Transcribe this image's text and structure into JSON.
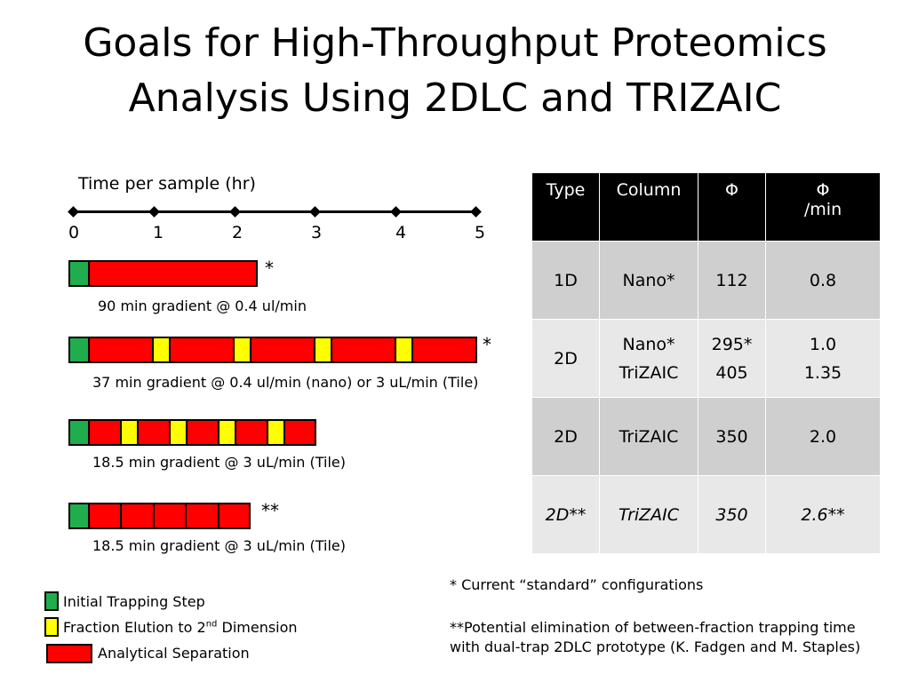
{
  "title": {
    "line1": "Goals for High-Throughput Proteomics",
    "line2": "Analysis Using 2DLC and TRIZAIC"
  },
  "axis": {
    "label": "Time per sample (hr)",
    "ticks": [
      "0",
      "1",
      "2",
      "3",
      "4",
      "5"
    ]
  },
  "bars": [
    {
      "caption": "90 min gradient @ 0.4 ul/min",
      "mark": "*",
      "segments": [
        "green",
        "red"
      ]
    },
    {
      "caption": "37 min gradient @ 0.4 ul/min (nano) or 3 uL/min (Tile)",
      "mark": "*",
      "segments": [
        "green",
        "red",
        "yellow",
        "red",
        "yellow",
        "red",
        "yellow",
        "red",
        "yellow",
        "red"
      ]
    },
    {
      "caption": "18.5 min gradient @ 3 uL/min (Tile)",
      "mark": "",
      "segments": [
        "green",
        "red",
        "yellow",
        "red",
        "yellow",
        "red",
        "yellow",
        "red",
        "yellow",
        "red"
      ]
    },
    {
      "caption": "18.5 min gradient @ 3 uL/min (Tile)",
      "mark": "**",
      "segments": [
        "green",
        "red",
        "red",
        "red",
        "red",
        "red"
      ]
    }
  ],
  "legend": {
    "green": "Initial Trapping Step",
    "yellow_prefix": "Fraction Elution to 2",
    "yellow_sup": "nd",
    "yellow_suffix": " Dimension",
    "red": "Analytical Separation"
  },
  "table": {
    "headers": [
      "Type",
      "Column",
      "Φ",
      "Φ",
      "/min"
    ],
    "rows": [
      {
        "type": "1D",
        "column1": "Nano*",
        "column2": "",
        "phi1": "112",
        "phi2": "",
        "rate1": "0.8",
        "rate2": ""
      },
      {
        "type": "2D",
        "column1": "Nano*",
        "column2": "TriZAIC",
        "phi1": "295*",
        "phi2": "405",
        "rate1": "1.0",
        "rate2": "1.35"
      },
      {
        "type": "2D",
        "column1": "TriZAIC",
        "column2": "",
        "phi1": "350",
        "phi2": "",
        "rate1": "2.0",
        "rate2": ""
      },
      {
        "type": "2D**",
        "column1": "TriZAIC",
        "column2": "",
        "phi1": "350",
        "phi2": "",
        "rate1": "2.6**",
        "rate2": ""
      }
    ]
  },
  "notes": {
    "note1": "* Current “standard” configurations",
    "note2_line1": "**Potential elimination of between-fraction trapping time",
    "note2_line2": "with dual-trap 2DLC prototype (K. Fadgen and M. Staples)"
  },
  "colors": {
    "green": "#1fad4e",
    "red": "#ff0000",
    "yellow": "#ffff00"
  }
}
